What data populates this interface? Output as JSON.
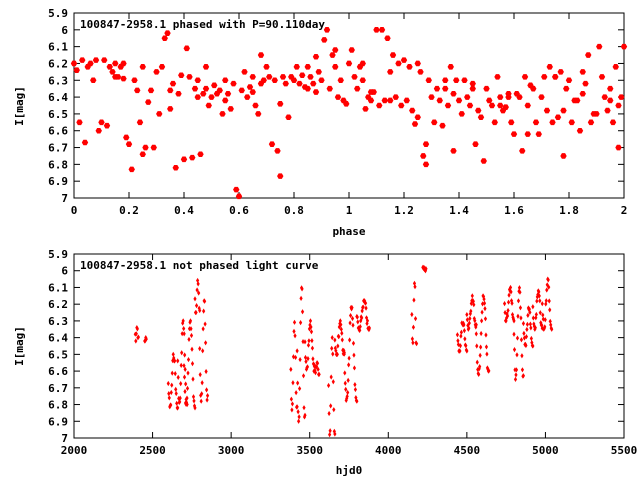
{
  "chart_data": [
    {
      "type": "scatter",
      "title": "100847-2958.1 phased with P=90.110day",
      "xlabel": "phase",
      "ylabel": "I[mag]",
      "xlim": [
        0,
        2
      ],
      "ylim": [
        5.9,
        7
      ],
      "y_inverted": true,
      "x_ticks": [
        "0",
        "0.2",
        "0.4",
        "0.6",
        "0.8",
        "1",
        "1.2",
        "1.4",
        "1.6",
        "1.8",
        "2"
      ],
      "y_ticks": [
        "5.9",
        "6",
        "6.1",
        "6.2",
        "6.3",
        "6.4",
        "6.5",
        "6.6",
        "6.7",
        "6.8",
        "6.9",
        "7"
      ],
      "marker_color": "#ff0000",
      "marker": "filled-hexagon",
      "grid": false,
      "points": [
        [
          0.0,
          6.2
        ],
        [
          0.01,
          6.24
        ],
        [
          0.02,
          6.55
        ],
        [
          0.03,
          6.18
        ],
        [
          0.04,
          6.67
        ],
        [
          0.05,
          6.22
        ],
        [
          0.06,
          6.2
        ],
        [
          0.07,
          6.3
        ],
        [
          0.08,
          6.18
        ],
        [
          0.09,
          6.6
        ],
        [
          0.1,
          6.55
        ],
        [
          0.11,
          6.18
        ],
        [
          0.12,
          6.57
        ],
        [
          0.13,
          6.22
        ],
        [
          0.14,
          6.25
        ],
        [
          0.15,
          6.2
        ],
        [
          0.16,
          6.28
        ],
        [
          0.17,
          6.22
        ],
        [
          0.18,
          6.29
        ],
        [
          0.19,
          6.64
        ],
        [
          0.2,
          6.68
        ],
        [
          0.21,
          6.83
        ],
        [
          0.22,
          6.3
        ],
        [
          0.23,
          6.36
        ],
        [
          0.24,
          6.55
        ],
        [
          0.25,
          6.22
        ],
        [
          0.26,
          6.7
        ],
        [
          0.27,
          6.43
        ],
        [
          0.28,
          6.36
        ],
        [
          0.29,
          6.7
        ],
        [
          0.3,
          6.25
        ],
        [
          0.31,
          6.5
        ],
        [
          0.32,
          6.22
        ],
        [
          0.33,
          6.05
        ],
        [
          0.34,
          6.02
        ],
        [
          0.35,
          6.47
        ],
        [
          0.36,
          6.32
        ],
        [
          0.37,
          6.82
        ],
        [
          0.38,
          6.38
        ],
        [
          0.39,
          6.27
        ],
        [
          0.4,
          6.77
        ],
        [
          0.41,
          6.11
        ],
        [
          0.42,
          6.28
        ],
        [
          0.43,
          6.76
        ],
        [
          0.44,
          6.35
        ],
        [
          0.45,
          6.4
        ],
        [
          0.46,
          6.74
        ],
        [
          0.47,
          6.38
        ],
        [
          0.48,
          6.22
        ],
        [
          0.49,
          6.45
        ],
        [
          0.5,
          6.4
        ],
        [
          0.51,
          6.33
        ],
        [
          0.52,
          6.38
        ],
        [
          0.53,
          6.36
        ],
        [
          0.54,
          6.5
        ],
        [
          0.55,
          6.3
        ],
        [
          0.56,
          6.38
        ],
        [
          0.57,
          6.47
        ],
        [
          0.58,
          6.32
        ],
        [
          0.59,
          6.95
        ],
        [
          0.6,
          6.99
        ],
        [
          0.61,
          6.36
        ],
        [
          0.62,
          6.25
        ],
        [
          0.63,
          6.4
        ],
        [
          0.64,
          6.34
        ],
        [
          0.65,
          6.28
        ],
        [
          0.66,
          6.45
        ],
        [
          0.67,
          6.5
        ],
        [
          0.68,
          6.32
        ],
        [
          0.69,
          6.3
        ],
        [
          0.7,
          6.22
        ],
        [
          0.71,
          6.28
        ],
        [
          0.72,
          6.68
        ],
        [
          0.73,
          6.3
        ],
        [
          0.74,
          6.72
        ],
        [
          0.75,
          6.87
        ],
        [
          0.76,
          6.28
        ],
        [
          0.77,
          6.32
        ],
        [
          0.78,
          6.52
        ],
        [
          0.79,
          6.28
        ],
        [
          0.8,
          6.3
        ],
        [
          0.81,
          6.22
        ],
        [
          0.82,
          6.32
        ],
        [
          0.83,
          6.27
        ],
        [
          0.84,
          6.34
        ],
        [
          0.85,
          6.22
        ],
        [
          0.86,
          6.28
        ],
        [
          0.87,
          6.32
        ],
        [
          0.88,
          6.16
        ],
        [
          0.89,
          6.25
        ],
        [
          0.9,
          6.3
        ],
        [
          0.91,
          6.06
        ],
        [
          0.92,
          6.0
        ],
        [
          0.93,
          6.35
        ],
        [
          0.94,
          6.15
        ],
        [
          0.95,
          6.12
        ],
        [
          0.96,
          6.4
        ],
        [
          0.97,
          6.3
        ],
        [
          0.98,
          6.42
        ],
        [
          0.99,
          6.44
        ],
        [
          1.0,
          6.2
        ],
        [
          1.01,
          6.12
        ],
        [
          1.02,
          6.28
        ],
        [
          1.03,
          6.35
        ],
        [
          1.04,
          6.22
        ],
        [
          1.05,
          6.3
        ],
        [
          1.06,
          6.47
        ],
        [
          1.07,
          6.4
        ],
        [
          1.08,
          6.42
        ],
        [
          1.09,
          6.37
        ],
        [
          1.1,
          6.0
        ],
        [
          1.11,
          6.45
        ],
        [
          1.12,
          6.0
        ],
        [
          1.13,
          6.42
        ],
        [
          1.14,
          6.05
        ],
        [
          1.15,
          6.25
        ],
        [
          1.16,
          6.15
        ],
        [
          1.17,
          6.4
        ],
        [
          1.18,
          6.2
        ],
        [
          1.19,
          6.45
        ],
        [
          1.2,
          6.18
        ],
        [
          1.21,
          6.42
        ],
        [
          1.22,
          6.22
        ],
        [
          1.23,
          6.48
        ],
        [
          1.24,
          6.56
        ],
        [
          1.25,
          6.52
        ],
        [
          1.26,
          6.25
        ],
        [
          1.27,
          6.75
        ],
        [
          1.28,
          6.68
        ],
        [
          1.29,
          6.3
        ],
        [
          1.3,
          6.4
        ],
        [
          1.31,
          6.55
        ],
        [
          1.32,
          6.35
        ],
        [
          1.33,
          6.42
        ],
        [
          1.34,
          6.57
        ],
        [
          1.35,
          6.3
        ],
        [
          1.36,
          6.45
        ],
        [
          1.37,
          6.22
        ],
        [
          1.38,
          6.38
        ],
        [
          1.39,
          6.3
        ],
        [
          1.4,
          6.42
        ],
        [
          1.41,
          6.5
        ],
        [
          1.42,
          6.3
        ],
        [
          1.43,
          6.4
        ],
        [
          1.44,
          6.45
        ],
        [
          1.45,
          6.35
        ],
        [
          1.46,
          6.68
        ],
        [
          1.47,
          6.48
        ],
        [
          1.48,
          6.52
        ],
        [
          1.49,
          6.78
        ],
        [
          1.5,
          6.35
        ],
        [
          1.51,
          6.42
        ],
        [
          1.52,
          6.45
        ],
        [
          1.53,
          6.55
        ],
        [
          1.54,
          6.28
        ],
        [
          1.55,
          6.4
        ],
        [
          1.56,
          6.48
        ],
        [
          1.57,
          6.46
        ],
        [
          1.58,
          6.4
        ],
        [
          1.59,
          6.55
        ],
        [
          1.6,
          6.62
        ],
        [
          1.61,
          6.38
        ],
        [
          1.62,
          6.4
        ],
        [
          1.63,
          6.72
        ],
        [
          1.64,
          6.28
        ],
        [
          1.65,
          6.45
        ],
        [
          1.66,
          6.33
        ],
        [
          1.67,
          6.35
        ],
        [
          1.68,
          6.55
        ],
        [
          1.69,
          6.62
        ],
        [
          1.7,
          6.4
        ],
        [
          1.71,
          6.28
        ],
        [
          1.72,
          6.48
        ],
        [
          1.73,
          6.22
        ],
        [
          1.74,
          6.55
        ],
        [
          1.75,
          6.28
        ],
        [
          1.76,
          6.52
        ],
        [
          1.77,
          6.25
        ],
        [
          1.78,
          6.48
        ],
        [
          1.79,
          6.35
        ],
        [
          1.8,
          6.3
        ],
        [
          1.81,
          6.55
        ],
        [
          1.82,
          6.42
        ],
        [
          1.83,
          6.42
        ],
        [
          1.84,
          6.6
        ],
        [
          1.85,
          6.25
        ],
        [
          1.86,
          6.32
        ],
        [
          1.87,
          6.15
        ],
        [
          1.88,
          6.55
        ],
        [
          1.89,
          6.5
        ],
        [
          1.9,
          6.5
        ],
        [
          1.91,
          6.1
        ],
        [
          1.92,
          6.28
        ],
        [
          1.93,
          6.4
        ],
        [
          1.94,
          6.48
        ],
        [
          1.95,
          6.35
        ],
        [
          1.96,
          6.55
        ],
        [
          1.97,
          6.22
        ],
        [
          1.98,
          6.7
        ],
        [
          1.99,
          6.4
        ],
        [
          0.15,
          6.28
        ],
        [
          0.25,
          6.74
        ],
        [
          0.35,
          6.36
        ],
        [
          0.45,
          6.3
        ],
        [
          0.55,
          6.42
        ],
        [
          0.65,
          6.37
        ],
        [
          0.75,
          6.44
        ],
        [
          0.85,
          6.35
        ],
        [
          0.95,
          6.22
        ],
        [
          1.05,
          6.2
        ],
        [
          1.15,
          6.42
        ],
        [
          1.25,
          6.2
        ],
        [
          1.35,
          6.35
        ],
        [
          1.45,
          6.32
        ],
        [
          1.55,
          6.45
        ],
        [
          1.65,
          6.62
        ],
        [
          1.75,
          6.28
        ],
        [
          1.85,
          6.38
        ],
        [
          1.95,
          6.42
        ],
        [
          2.0,
          6.1
        ],
        [
          0.18,
          6.2
        ],
        [
          0.48,
          6.35
        ],
        [
          0.68,
          6.15
        ],
        [
          0.88,
          6.37
        ],
        [
          1.08,
          6.37
        ],
        [
          1.28,
          6.8
        ],
        [
          1.38,
          6.72
        ],
        [
          1.58,
          6.38
        ],
        [
          1.78,
          6.75
        ],
        [
          1.98,
          6.45
        ]
      ]
    },
    {
      "type": "scatter",
      "title": "100847-2958.1 not phased light curve",
      "xlabel": "hjd0",
      "ylabel": "I[mag]",
      "xlim": [
        2000,
        5500
      ],
      "ylim": [
        5.9,
        7
      ],
      "y_inverted": true,
      "x_ticks": [
        "2000",
        "2500",
        "3000",
        "3500",
        "4000",
        "4500",
        "5000",
        "5500"
      ],
      "y_ticks": [
        "5.9",
        "6",
        "6.1",
        "6.2",
        "6.3",
        "6.4",
        "6.5",
        "6.6",
        "6.7",
        "6.8",
        "6.9",
        "7"
      ],
      "marker_color": "#ff0000",
      "marker": "filled-diamond",
      "grid": false,
      "segments": [
        {
          "x_start": 2390,
          "x_end": 2410,
          "y_start": 6.34,
          "y_end": 6.42
        },
        {
          "x_start": 2450,
          "x_end": 2460,
          "y_start": 6.4,
          "y_end": 6.42
        },
        {
          "x_start": 2600,
          "x_end": 2660,
          "y_start": 6.5,
          "y_end": 6.82
        },
        {
          "x_start": 2660,
          "x_end": 2720,
          "y_start": 6.3,
          "y_end": 6.8
        },
        {
          "x_start": 2700,
          "x_end": 2770,
          "y_start": 6.3,
          "y_end": 6.82
        },
        {
          "x_start": 2770,
          "x_end": 2800,
          "y_start": 6.05,
          "y_end": 6.25
        },
        {
          "x_start": 2800,
          "x_end": 2850,
          "y_start": 6.18,
          "y_end": 6.78
        },
        {
          "x_start": 3380,
          "x_end": 3420,
          "y_start": 6.3,
          "y_end": 6.85
        },
        {
          "x_start": 3420,
          "x_end": 3470,
          "y_start": 6.1,
          "y_end": 6.9
        },
        {
          "x_start": 3470,
          "x_end": 3530,
          "y_start": 6.3,
          "y_end": 6.6
        },
        {
          "x_start": 3530,
          "x_end": 3560,
          "y_start": 6.55,
          "y_end": 6.62
        },
        {
          "x_start": 3620,
          "x_end": 3660,
          "y_start": 6.4,
          "y_end": 6.98
        },
        {
          "x_start": 3660,
          "x_end": 3720,
          "y_start": 6.3,
          "y_end": 6.5
        },
        {
          "x_start": 3720,
          "x_end": 3800,
          "y_start": 6.22,
          "y_end": 6.78
        },
        {
          "x_start": 3800,
          "x_end": 3880,
          "y_start": 6.18,
          "y_end": 6.36
        },
        {
          "x_start": 4150,
          "x_end": 4180,
          "y_start": 6.05,
          "y_end": 6.45
        },
        {
          "x_start": 4220,
          "x_end": 4240,
          "y_start": 5.98,
          "y_end": 6.0
        },
        {
          "x_start": 4440,
          "x_end": 4500,
          "y_start": 6.3,
          "y_end": 6.48
        },
        {
          "x_start": 4500,
          "x_end": 4560,
          "y_start": 6.15,
          "y_end": 6.35
        },
        {
          "x_start": 4560,
          "x_end": 4640,
          "y_start": 6.15,
          "y_end": 6.62
        },
        {
          "x_start": 4740,
          "x_end": 4800,
          "y_start": 6.1,
          "y_end": 6.3
        },
        {
          "x_start": 4800,
          "x_end": 4860,
          "y_start": 6.1,
          "y_end": 6.65
        },
        {
          "x_start": 4860,
          "x_end": 4920,
          "y_start": 6.22,
          "y_end": 6.45
        },
        {
          "x_start": 4920,
          "x_end": 4980,
          "y_start": 6.12,
          "y_end": 6.35
        },
        {
          "x_start": 4980,
          "x_end": 5040,
          "y_start": 6.05,
          "y_end": 6.35
        }
      ]
    }
  ]
}
